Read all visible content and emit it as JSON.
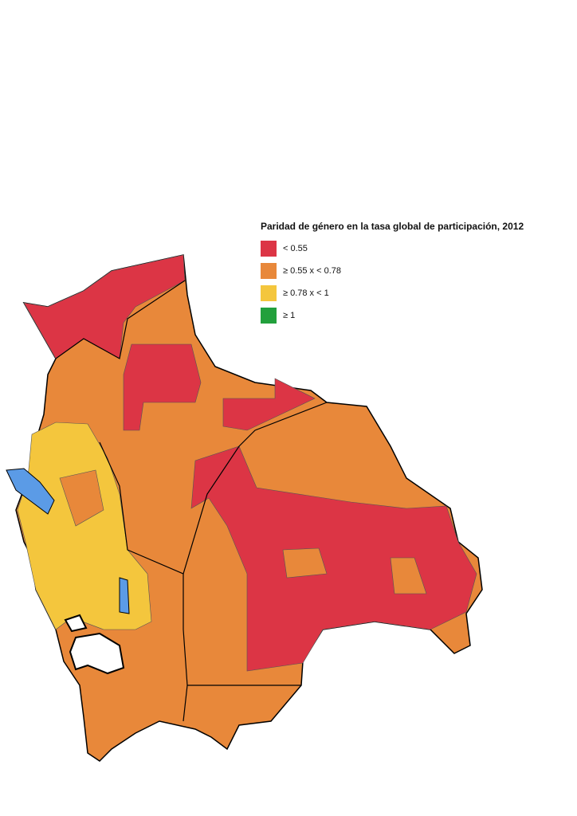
{
  "legend": {
    "title": "Paridad de género en la tasa global de participación, 2012",
    "items": [
      {
        "label": "< 0.55",
        "color": "#dc3545"
      },
      {
        "label": "≥ 0.55 x < 0.78",
        "color": "#e8883a"
      },
      {
        "label": "≥ 0.78 x < 1",
        "color": "#f4c63d"
      },
      {
        "label": "≥ 1",
        "color": "#22a03c"
      }
    ]
  }
}
